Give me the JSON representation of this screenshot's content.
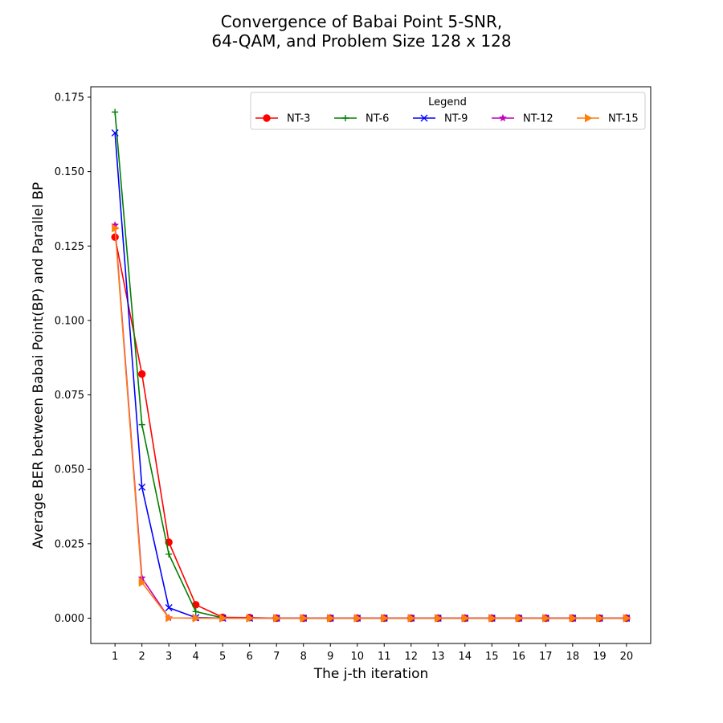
{
  "chart_data": {
    "type": "line",
    "title_lines": [
      "Convergence of Babai Point 5-SNR,",
      "64-QAM, and Problem Size 128 x 128"
    ],
    "xlabel": "The j-th iteration",
    "ylabel": "Average BER between Babai Point(BP) and Parallel BP",
    "xlim": [
      0.1,
      20.9
    ],
    "ylim": [
      -0.0085,
      0.1785
    ],
    "x": [
      1,
      2,
      3,
      4,
      5,
      6,
      7,
      8,
      9,
      10,
      11,
      12,
      13,
      14,
      15,
      16,
      17,
      18,
      19,
      20
    ],
    "x_ticks": [
      "1",
      "2",
      "3",
      "4",
      "5",
      "6",
      "7",
      "8",
      "9",
      "10",
      "11",
      "12",
      "13",
      "14",
      "15",
      "16",
      "17",
      "18",
      "19",
      "20"
    ],
    "y_ticks": [
      0.0,
      0.025,
      0.05,
      0.075,
      0.1,
      0.125,
      0.15,
      0.175
    ],
    "y_tick_labels": [
      "0.000",
      "0.025",
      "0.050",
      "0.075",
      "0.100",
      "0.125",
      "0.150",
      "0.175"
    ],
    "legend": {
      "title": "Legend",
      "position": "top-right",
      "columns": 5
    },
    "series": [
      {
        "name": "NT-3",
        "color": "#ff0000",
        "marker": "circle",
        "values": [
          0.128,
          0.082,
          0.0255,
          0.0045,
          0.0003,
          0.0002,
          0,
          0,
          0,
          0,
          0,
          0,
          0,
          0,
          0,
          0,
          0,
          0,
          0,
          0
        ]
      },
      {
        "name": "NT-6",
        "color": "#008000",
        "marker": "plus",
        "values": [
          0.17,
          0.065,
          0.0215,
          0.0022,
          0.0001,
          0,
          0,
          0,
          0,
          0,
          0,
          0,
          0,
          0,
          0,
          0,
          0,
          0,
          0,
          0
        ]
      },
      {
        "name": "NT-9",
        "color": "#0000ff",
        "marker": "x",
        "values": [
          0.163,
          0.044,
          0.0035,
          0.0002,
          0,
          0,
          0,
          0,
          0,
          0,
          0,
          0,
          0,
          0,
          0,
          0,
          0,
          0,
          0,
          0
        ]
      },
      {
        "name": "NT-12",
        "color": "#bf00bf",
        "marker": "star",
        "values": [
          0.132,
          0.0135,
          0.0001,
          0,
          0,
          0,
          0,
          0,
          0,
          0,
          0,
          0,
          0,
          0,
          0,
          0,
          0,
          0,
          0,
          0
        ]
      },
      {
        "name": "NT-15",
        "color": "#ff7f0e",
        "marker": "triangle-right",
        "values": [
          0.131,
          0.012,
          0.0001,
          0,
          0,
          0,
          0,
          0,
          0,
          0,
          0,
          0,
          0,
          0,
          0,
          0,
          0,
          0,
          0,
          0
        ]
      }
    ],
    "grid": false
  }
}
